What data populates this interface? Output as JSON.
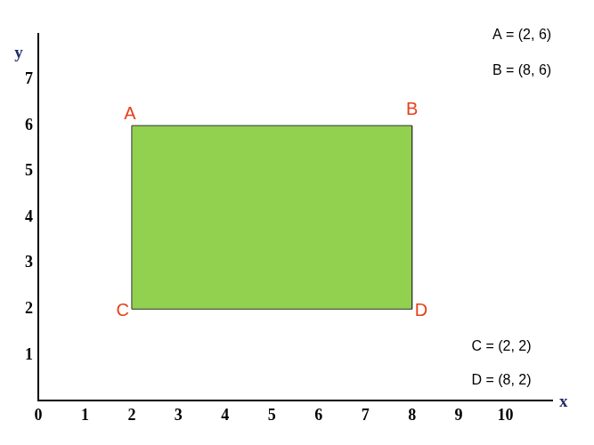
{
  "chart_data": {
    "type": "polygon",
    "points": [
      {
        "label": "A",
        "x": 2,
        "y": 6
      },
      {
        "label": "B",
        "x": 8,
        "y": 6
      },
      {
        "label": "D",
        "x": 8,
        "y": 2
      },
      {
        "label": "C",
        "x": 2,
        "y": 2
      }
    ],
    "annotations": [
      "A = (2, 6)",
      "B = (8, 6)",
      "C = (2, 2)",
      "D = (8, 2)"
    ],
    "xlabel": "x",
    "ylabel": "y",
    "xlim": [
      0,
      11
    ],
    "xticks": [
      0,
      1,
      2,
      3,
      4,
      5,
      6,
      7,
      8,
      9,
      10
    ],
    "ylim": [
      0,
      8
    ],
    "yticks": [
      1,
      2,
      3,
      4,
      5,
      6,
      7
    ],
    "color": "#92d050",
    "grid": false
  }
}
